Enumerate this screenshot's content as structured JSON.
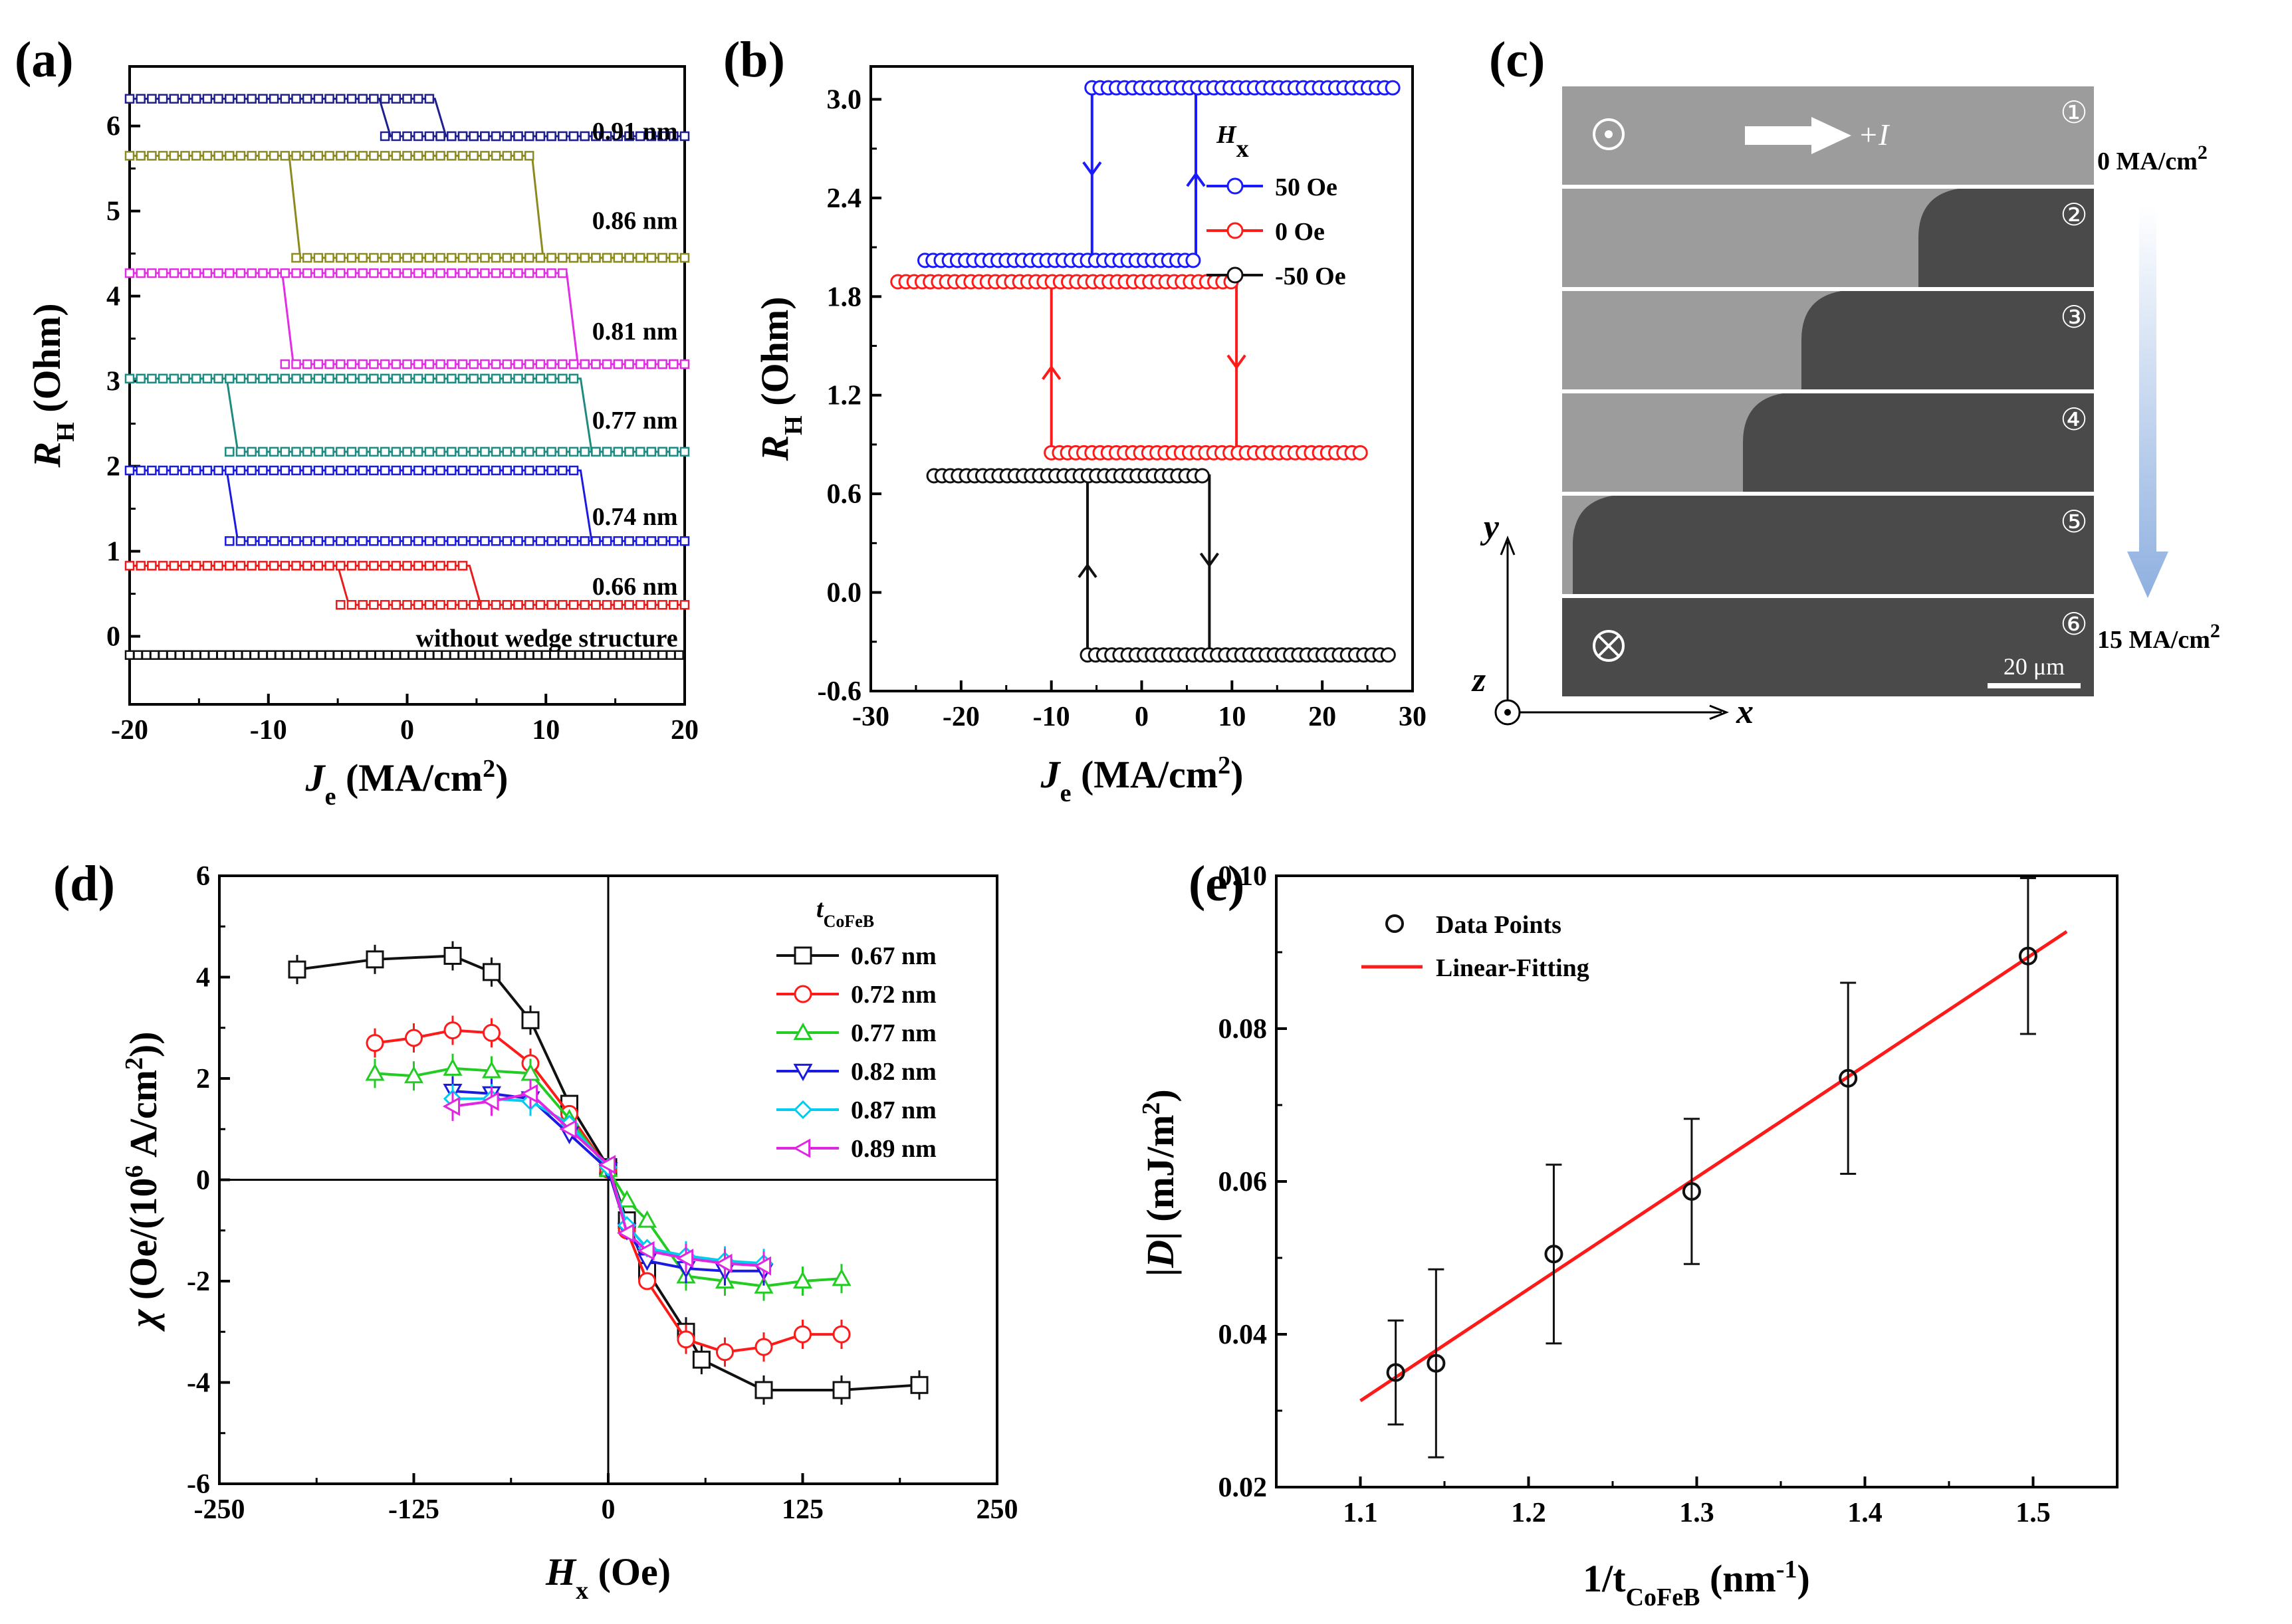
{
  "figure": {
    "panel_labels": [
      "(a)",
      "(b)",
      "(c)",
      "(d)",
      "(e)"
    ]
  },
  "chart_data": [
    {
      "id": "a",
      "type": "line",
      "title": "",
      "xlabel": "J",
      "xlabel_sub": "e",
      "xlabel_unit": "(MA/cm",
      "xlabel_sup": "2",
      "xlabel_close": ")",
      "ylabel": "R",
      "ylabel_sub": "H",
      "ylabel_unit": "(Ohm)",
      "xlim": [
        -20,
        20
      ],
      "ylim": [
        -0.8,
        6.7
      ],
      "xticks": [
        "-20",
        "-10",
        "0",
        "10",
        "20"
      ],
      "yticks": [
        "0",
        "1",
        "2",
        "3",
        "4",
        "5",
        "6"
      ],
      "series": [
        {
          "name": "0.91 nm",
          "color": "#1f1f8f",
          "high": 6.32,
          "low": 5.88,
          "sw_neg": -2,
          "sw_pos": 2,
          "label_y": 5.95
        },
        {
          "name": "0.86 nm",
          "color": "#8a8a1f",
          "high": 5.65,
          "low": 4.45,
          "sw_neg": -8.5,
          "sw_pos": 9,
          "label_y": 4.9
        },
        {
          "name": "0.81 nm",
          "color": "#e22ee2",
          "high": 4.27,
          "low": 3.2,
          "sw_neg": -9,
          "sw_pos": 11.5,
          "label_y": 3.6
        },
        {
          "name": "0.77 nm",
          "color": "#1f8a80",
          "high": 3.03,
          "low": 2.17,
          "sw_neg": -13,
          "sw_pos": 12.5,
          "label_y": 2.55
        },
        {
          "name": "0.74 nm",
          "color": "#1a1ae0",
          "high": 1.95,
          "low": 1.12,
          "sw_neg": -13,
          "sw_pos": 12.5,
          "label_y": 1.42
        },
        {
          "name": "0.66 nm",
          "color": "#e81c1c",
          "high": 0.83,
          "low": 0.37,
          "sw_neg": -5,
          "sw_pos": 4.5,
          "label_y": 0.6
        },
        {
          "name": "without wedge structure",
          "color": "#111111",
          "high": -0.22,
          "low": -0.22,
          "sw_neg": 0,
          "sw_pos": 0,
          "label_y": -0.01
        }
      ]
    },
    {
      "id": "b",
      "type": "line",
      "xlabel": "J",
      "xlabel_sub": "e",
      "xlabel_unit": "(MA/cm",
      "xlabel_sup": "2",
      "xlabel_close": ")",
      "ylabel": "R",
      "ylabel_sub": "H",
      "ylabel_unit": "(Ohm)",
      "xlim": [
        -30,
        30
      ],
      "ylim": [
        -0.6,
        3.2
      ],
      "xticks": [
        "-30",
        "-20",
        "-10",
        "0",
        "10",
        "20",
        "30"
      ],
      "yticks": [
        "-0.6",
        "0.0",
        "0.6",
        "1.2",
        "1.8",
        "2.4",
        "3.0"
      ],
      "legend_title": "H",
      "legend_title_sub": "x",
      "series": [
        {
          "name": "50 Oe",
          "color": "#1a1aff",
          "high": 3.07,
          "low": 2.02,
          "x_min": -24,
          "x_max": 28,
          "sw_neg": -5.5,
          "sw_pos": 6
        },
        {
          "name": "0 Oe",
          "color": "#ff1a1a",
          "high": 1.89,
          "low": 0.85,
          "x_min": -27,
          "x_max": 25,
          "sw_neg": -10,
          "sw_pos": 10.5
        },
        {
          "name": "-50 Oe",
          "color": "#111111",
          "high": 0.71,
          "low": -0.38,
          "x_min": -23,
          "x_max": 28,
          "sw_neg": -6,
          "sw_pos": 7.5
        }
      ]
    },
    {
      "id": "d",
      "type": "line",
      "xlabel": "H",
      "xlabel_sub": "x",
      "xlabel_unit": "(Oe)",
      "ylabel": "χ",
      "ylabel_unit": "(Oe/(10",
      "ylabel_sup": "6",
      "ylabel_rest": " A/cm",
      "ylabel_sup2": "2",
      "ylabel_close": "))",
      "xlim": [
        -250,
        250
      ],
      "ylim": [
        -6,
        6
      ],
      "xticks": [
        "-250",
        "-125",
        "0",
        "125",
        "250"
      ],
      "yticks": [
        "-6",
        "-4",
        "-2",
        "0",
        "2",
        "4",
        "6"
      ],
      "legend_title": "t",
      "legend_title_sub": "CoFeB",
      "series": [
        {
          "name": "0.67 nm",
          "color": "#111111",
          "marker": "square",
          "x": [
            -200,
            -150,
            -100,
            -75,
            -50,
            -25,
            0,
            12,
            25,
            50,
            60,
            100,
            150,
            200
          ],
          "y": [
            4.15,
            4.35,
            4.42,
            4.1,
            3.15,
            1.5,
            0.25,
            -0.8,
            -1.8,
            -3.0,
            -3.55,
            -4.15,
            -4.15,
            -4.05
          ]
        },
        {
          "name": "0.72 nm",
          "color": "#ff1a1a",
          "marker": "circle",
          "x": [
            -150,
            -125,
            -100,
            -75,
            -50,
            -25,
            0,
            12,
            25,
            50,
            75,
            100,
            125,
            150
          ],
          "y": [
            2.7,
            2.8,
            2.95,
            2.9,
            2.3,
            1.3,
            0.2,
            -1.0,
            -2.0,
            -3.15,
            -3.4,
            -3.3,
            -3.05,
            -3.05
          ]
        },
        {
          "name": "0.77 nm",
          "color": "#22cc22",
          "marker": "triangle-up",
          "x": [
            -150,
            -125,
            -100,
            -75,
            -50,
            -25,
            0,
            12,
            25,
            50,
            75,
            100,
            125,
            150
          ],
          "y": [
            2.1,
            2.05,
            2.2,
            2.15,
            2.1,
            1.2,
            0.2,
            -0.4,
            -0.8,
            -1.9,
            -2.0,
            -2.1,
            -2.0,
            -1.95
          ]
        },
        {
          "name": "0.82 nm",
          "color": "#1a1ae0",
          "marker": "triangle-down",
          "x": [
            -100,
            -75,
            -50,
            -25,
            0,
            12,
            25,
            50,
            75,
            100
          ],
          "y": [
            1.75,
            1.7,
            1.6,
            0.9,
            0.2,
            -1.0,
            -1.6,
            -1.75,
            -1.8,
            -1.8
          ]
        },
        {
          "name": "0.87 nm",
          "color": "#00ccee",
          "marker": "diamond",
          "x": [
            -100,
            -75,
            -50,
            -25,
            0,
            12,
            25,
            50,
            75,
            100
          ],
          "y": [
            1.6,
            1.6,
            1.55,
            1.1,
            0.25,
            -0.9,
            -1.35,
            -1.5,
            -1.6,
            -1.65
          ]
        },
        {
          "name": "0.89 nm",
          "color": "#e026e0",
          "marker": "triangle-left",
          "x": [
            -100,
            -75,
            -50,
            -25,
            0,
            12,
            25,
            50,
            75,
            100
          ],
          "y": [
            1.45,
            1.55,
            1.7,
            1.0,
            0.3,
            -1.05,
            -1.4,
            -1.55,
            -1.65,
            -1.7
          ]
        }
      ]
    },
    {
      "id": "e",
      "type": "scatter",
      "xlabel": "1/t",
      "xlabel_sub": "CoFeB",
      "xlabel_unit": "(nm",
      "xlabel_sup": "-1",
      "xlabel_close": ")",
      "ylabel": "|D|",
      "ylabel_unit": "(mJ/m",
      "ylabel_sup": "2",
      "ylabel_close": ")",
      "xlim": [
        1.05,
        1.55
      ],
      "ylim": [
        0.02,
        0.1
      ],
      "xticks": [
        "1.1",
        "1.2",
        "1.3",
        "1.4",
        "1.5"
      ],
      "yticks": [
        "0.02",
        "0.04",
        "0.06",
        "0.08",
        "0.10"
      ],
      "legend": [
        "Data Points",
        "Linear-Fitting"
      ],
      "points": {
        "x": [
          1.121,
          1.145,
          1.215,
          1.297,
          1.39,
          1.497
        ],
        "y": [
          0.035,
          0.0362,
          0.0505,
          0.0587,
          0.0735,
          0.0895
        ],
        "err": [
          0.0068,
          0.0123,
          0.0117,
          0.0095,
          0.0125,
          0.0102
        ]
      },
      "fit": {
        "x": [
          1.1,
          1.52
        ],
        "y": [
          0.0313,
          0.0927
        ]
      }
    }
  ],
  "panel_c": {
    "frame_labels": [
      "①",
      "②",
      "③",
      "④",
      "⑤",
      "⑥"
    ],
    "current_label": "+I",
    "start_label": "0 MA/cm",
    "start_label_sup": "2",
    "end_label": "15 MA/cm",
    "end_label_sup": "2",
    "scale_label": "20 μm",
    "axis_x": "x",
    "axis_y": "y",
    "axis_z": "z",
    "domain_fraction": [
      0,
      0.33,
      0.55,
      0.66,
      0.98,
      1.0
    ],
    "colors": {
      "light": "#9c9c9c",
      "dark": "#4a4a4a",
      "arrow": "#8fb0e0"
    }
  }
}
